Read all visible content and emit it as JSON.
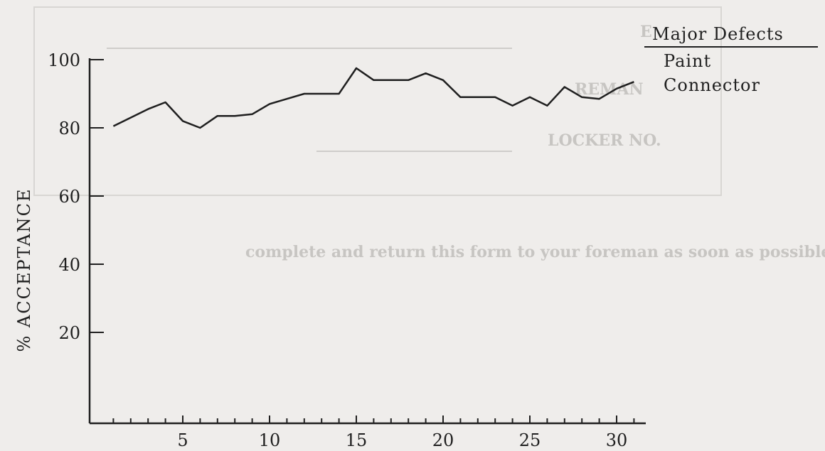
{
  "chart_data": {
    "type": "line",
    "title": "",
    "xlabel": "",
    "ylabel": "% ACCEPTANCE",
    "xlim": [
      0,
      31.5
    ],
    "ylim": [
      0,
      100
    ],
    "x_ticks_labeled": [
      5,
      10,
      15,
      20,
      25,
      30
    ],
    "y_ticks_labeled": [
      20,
      40,
      60,
      80,
      100
    ],
    "legend": {
      "placement": "top-right",
      "heading": "Major Defects",
      "entries": [
        "Paint",
        "Connector"
      ]
    },
    "series": [
      {
        "x": [
          1,
          2,
          3,
          4,
          5,
          6,
          7,
          8,
          9,
          10,
          11,
          12,
          13,
          14,
          15,
          16,
          17,
          18,
          19,
          20,
          21,
          22,
          23,
          24,
          25,
          26,
          27,
          28,
          29,
          30,
          31
        ],
        "values": [
          80.5,
          83,
          85.5,
          87.5,
          82,
          80,
          83.5,
          83.5,
          84,
          87,
          88.5,
          90,
          90,
          90,
          97.5,
          94,
          94,
          94,
          96,
          94,
          89,
          89,
          89,
          86.5,
          89,
          86.5,
          92,
          89,
          88.5,
          91.5,
          93.5
        ]
      }
    ],
    "grid": false
  },
  "background_print": {
    "line1": "E",
    "line2": "REMAN",
    "line3": "LOCKER NO.",
    "line4": "complete and return this form to your foreman as soon as possible."
  },
  "colors": {
    "ink": "#1f1f1f",
    "paper": "#efedeb",
    "ghost": "#c7c5c2"
  }
}
